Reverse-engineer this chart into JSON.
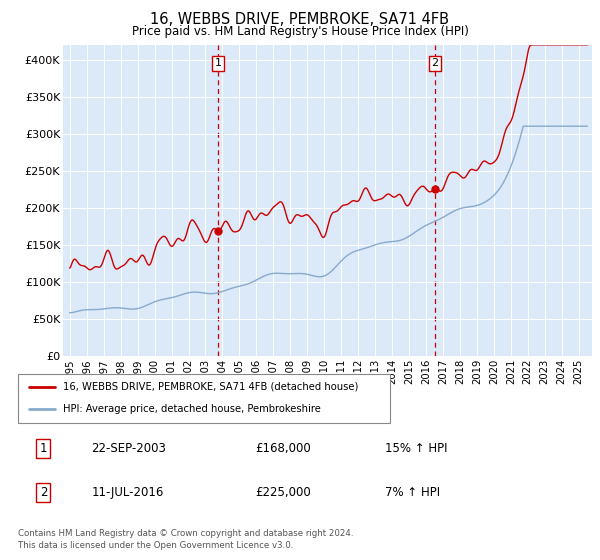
{
  "title": "16, WEBBS DRIVE, PEMBROKE, SA71 4FB",
  "subtitle": "Price paid vs. HM Land Registry's House Price Index (HPI)",
  "ytick_values": [
    0,
    50000,
    100000,
    150000,
    200000,
    250000,
    300000,
    350000,
    400000
  ],
  "ytick_labels": [
    "£0",
    "£50K",
    "£100K",
    "£150K",
    "£200K",
    "£250K",
    "£300K",
    "£350K",
    "£400K"
  ],
  "ylim": [
    0,
    420000
  ],
  "xlim_start": 1994.6,
  "xlim_end": 2025.8,
  "bg_color": "#dce9f8",
  "red_color": "#cc0000",
  "blue_color": "#88aacc",
  "marker1_date": 2003.73,
  "marker1_price": 168000,
  "marker2_date": 2016.53,
  "marker2_price": 225000,
  "legend_line1": "16, WEBBS DRIVE, PEMBROKE, SA71 4FB (detached house)",
  "legend_line2": "HPI: Average price, detached house, Pembrokeshire",
  "footnote": "Contains HM Land Registry data © Crown copyright and database right 2024.\nThis data is licensed under the Open Government Licence v3.0.",
  "table_row1": [
    "1",
    "22-SEP-2003",
    "£168,000",
    "15% ↑ HPI"
  ],
  "table_row2": [
    "2",
    "11-JUL-2016",
    "£225,000",
    "7% ↑ HPI"
  ]
}
